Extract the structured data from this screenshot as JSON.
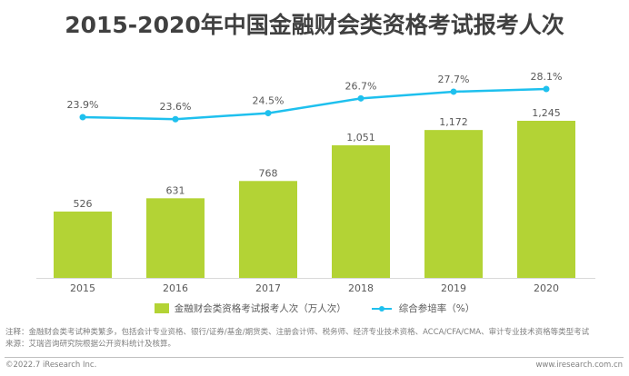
{
  "title": "2015-2020年中国金融财会类资格考试报考人次",
  "chart_data": {
    "type": "bar",
    "title": "2015-2020年中国金融财会类资格考试报考人次",
    "categories": [
      "2015",
      "2016",
      "2017",
      "2018",
      "2019",
      "2020"
    ],
    "series": [
      {
        "name": "金融财会类资格考试报考人次（万人次）",
        "type": "bar",
        "axis": "left",
        "color": "#B3D335",
        "values": [
          526,
          631,
          768,
          1051,
          1172,
          1245
        ],
        "labels": [
          "526",
          "631",
          "768",
          "1,051",
          "1,172",
          "1,245"
        ]
      },
      {
        "name": "综合参培率（%）",
        "type": "line",
        "axis": "right",
        "color": "#1EC0EE",
        "values": [
          23.9,
          23.6,
          24.5,
          26.7,
          27.7,
          28.1
        ],
        "labels": [
          "23.9%",
          "23.6%",
          "24.5%",
          "26.7%",
          "27.7%",
          "28.1%"
        ]
      }
    ],
    "xlabel": "",
    "ylabel": "",
    "y_axis_visible": false,
    "grid": false,
    "legend_position": "bottom"
  },
  "legend": {
    "bar_label": "金融财会类资格考试报考人次（万人次）",
    "line_label": "综合参培率（%）"
  },
  "notes": {
    "note": "注释：金融财会类考试种类繁多，包括会计专业资格、银行/证券/基金/期货类、注册会计师、税务师、经济专业技术资格、ACCA/CFA/CMA、审计专业技术资格等类型考试",
    "source": "来源：艾瑞咨询研究院根据公开资料统计及核算。"
  },
  "footer": {
    "copyright": "©2022.7 iResearch Inc.",
    "website": "www.iresearch.com.cn"
  }
}
